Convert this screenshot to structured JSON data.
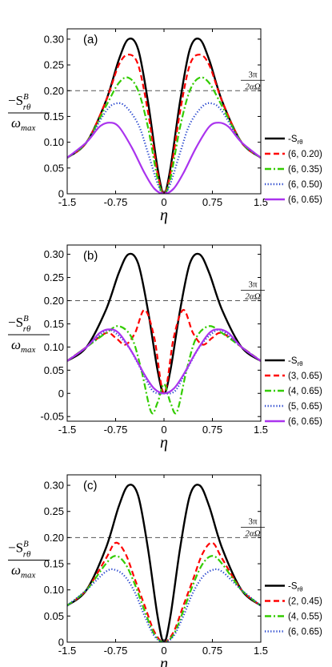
{
  "figure": {
    "ylabel_top": "−S",
    "ylabel_top_sup": "B",
    "ylabel_top_sub": "rθ",
    "ylabel_bottom": "ω",
    "ylabel_bottom_sub": "max",
    "xlabel": "η",
    "ref_label_num": "3π",
    "ref_label_den": "2αΩ"
  },
  "chart_data": [
    {
      "type": "line",
      "panel_label": "(a)",
      "xlim": [
        -1.5,
        1.5
      ],
      "ylim": [
        0,
        0.32
      ],
      "xticks": [
        "-1.5",
        "-0.75",
        "0",
        "0.75",
        "1.5"
      ],
      "yticks": [
        "0",
        "0.05",
        "0.10",
        "0.15",
        "0.20",
        "0.25",
        "0.30"
      ],
      "reference_line": {
        "y": 0.2
      },
      "legend_position": "right",
      "series": [
        {
          "name": "-S",
          "name_sub": "rθ",
          "color": "#000000",
          "style": "solid",
          "x": [
            -1.5,
            -1.2,
            -0.9,
            -0.7,
            -0.55,
            -0.4,
            -0.25,
            -0.1,
            0,
            0.1,
            0.25,
            0.4,
            0.55,
            0.7,
            0.9,
            1.2,
            1.5
          ],
          "y": [
            0.07,
            0.1,
            0.18,
            0.26,
            0.3,
            0.28,
            0.18,
            0.05,
            0,
            0.05,
            0.18,
            0.28,
            0.3,
            0.26,
            0.18,
            0.1,
            0.07
          ]
        },
        {
          "name": "(6, 0.20)",
          "color": "#ff0000",
          "style": "dashed",
          "x": [
            -1.5,
            -1.2,
            -0.9,
            -0.7,
            -0.55,
            -0.4,
            -0.25,
            -0.1,
            0,
            0.1,
            0.25,
            0.4,
            0.55,
            0.7,
            0.9,
            1.2,
            1.5
          ],
          "y": [
            0.07,
            0.1,
            0.18,
            0.25,
            0.27,
            0.25,
            0.16,
            0.04,
            0,
            0.04,
            0.16,
            0.25,
            0.27,
            0.25,
            0.18,
            0.1,
            0.07
          ]
        },
        {
          "name": "(6, 0.35)",
          "color": "#33cc00",
          "style": "dashdot",
          "x": [
            -1.5,
            -1.2,
            -0.9,
            -0.7,
            -0.55,
            -0.4,
            -0.25,
            -0.1,
            0,
            0.1,
            0.25,
            0.4,
            0.55,
            0.7,
            0.9,
            1.2,
            1.5
          ],
          "y": [
            0.07,
            0.1,
            0.17,
            0.215,
            0.225,
            0.2,
            0.13,
            0.03,
            0,
            0.03,
            0.13,
            0.2,
            0.225,
            0.215,
            0.17,
            0.1,
            0.07
          ]
        },
        {
          "name": "(6, 0.50)",
          "color": "#1f3fcc",
          "style": "dotted",
          "x": [
            -1.5,
            -1.2,
            -0.9,
            -0.75,
            -0.6,
            -0.4,
            -0.25,
            -0.1,
            0,
            0.1,
            0.25,
            0.4,
            0.6,
            0.75,
            0.9,
            1.2,
            1.5
          ],
          "y": [
            0.07,
            0.1,
            0.16,
            0.175,
            0.17,
            0.135,
            0.08,
            0.02,
            0,
            0.02,
            0.08,
            0.135,
            0.17,
            0.175,
            0.16,
            0.1,
            0.07
          ]
        },
        {
          "name": "(6, 0.65)",
          "color": "#aa33ee",
          "style": "solid",
          "x": [
            -1.5,
            -1.2,
            -1.0,
            -0.85,
            -0.7,
            -0.5,
            -0.3,
            -0.15,
            0,
            0.15,
            0.3,
            0.5,
            0.7,
            0.85,
            1.0,
            1.2,
            1.5
          ],
          "y": [
            0.07,
            0.1,
            0.13,
            0.138,
            0.13,
            0.09,
            0.04,
            0.01,
            0,
            0.01,
            0.04,
            0.09,
            0.13,
            0.138,
            0.13,
            0.1,
            0.07
          ]
        }
      ]
    },
    {
      "type": "line",
      "panel_label": "(b)",
      "xlim": [
        -1.5,
        1.5
      ],
      "ylim": [
        -0.06,
        0.32
      ],
      "xticks": [
        "-1.5",
        "-0.75",
        "0",
        "0.75",
        "1.5"
      ],
      "yticks": [
        "-0.05",
        "0",
        "0.05",
        "0.10",
        "0.15",
        "0.20",
        "0.25",
        "0.30"
      ],
      "reference_line": {
        "y": 0.2
      },
      "legend_position": "right",
      "series": [
        {
          "name": "-S",
          "name_sub": "rθ",
          "color": "#000000",
          "style": "solid",
          "x": [
            -1.5,
            -1.2,
            -0.9,
            -0.7,
            -0.55,
            -0.4,
            -0.25,
            -0.1,
            0,
            0.1,
            0.25,
            0.4,
            0.55,
            0.7,
            0.9,
            1.2,
            1.5
          ],
          "y": [
            0.07,
            0.1,
            0.18,
            0.26,
            0.3,
            0.28,
            0.18,
            0.05,
            0,
            0.05,
            0.18,
            0.28,
            0.3,
            0.26,
            0.18,
            0.1,
            0.07
          ]
        },
        {
          "name": "(3, 0.65)",
          "color": "#ff0000",
          "style": "dashed",
          "x": [
            -1.5,
            -1.2,
            -0.9,
            -0.75,
            -0.6,
            -0.45,
            -0.3,
            -0.15,
            0,
            0.15,
            0.3,
            0.45,
            0.6,
            0.75,
            0.9,
            1.2,
            1.5
          ],
          "y": [
            0.07,
            0.1,
            0.13,
            0.12,
            0.105,
            0.13,
            0.18,
            0.12,
            0,
            0.12,
            0.18,
            0.13,
            0.105,
            0.12,
            0.13,
            0.1,
            0.07
          ]
        },
        {
          "name": "(4, 0.65)",
          "color": "#33cc00",
          "style": "dashdot",
          "x": [
            -1.5,
            -1.2,
            -0.9,
            -0.7,
            -0.5,
            -0.35,
            -0.2,
            -0.1,
            0,
            0.1,
            0.2,
            0.35,
            0.5,
            0.7,
            0.9,
            1.2,
            1.5
          ],
          "y": [
            0.07,
            0.1,
            0.13,
            0.145,
            0.12,
            0.05,
            -0.04,
            -0.02,
            0.02,
            -0.02,
            -0.04,
            0.05,
            0.12,
            0.145,
            0.13,
            0.1,
            0.07
          ]
        },
        {
          "name": "(5, 0.65)",
          "color": "#1f3fcc",
          "style": "dotted",
          "x": [
            -1.5,
            -1.2,
            -0.9,
            -0.75,
            -0.55,
            -0.35,
            -0.2,
            -0.1,
            0,
            0.1,
            0.2,
            0.35,
            0.55,
            0.75,
            0.9,
            1.2,
            1.5
          ],
          "y": [
            0.07,
            0.1,
            0.135,
            0.13,
            0.1,
            0.05,
            0.01,
            0.0,
            0.0,
            0.0,
            0.01,
            0.05,
            0.1,
            0.13,
            0.135,
            0.1,
            0.07
          ]
        },
        {
          "name": "(6, 0.65)",
          "color": "#aa33ee",
          "style": "solid",
          "x": [
            -1.5,
            -1.2,
            -1.0,
            -0.85,
            -0.7,
            -0.5,
            -0.3,
            -0.15,
            0,
            0.15,
            0.3,
            0.5,
            0.7,
            0.85,
            1.0,
            1.2,
            1.5
          ],
          "y": [
            0.07,
            0.1,
            0.13,
            0.138,
            0.13,
            0.09,
            0.04,
            0.01,
            0,
            0.01,
            0.04,
            0.09,
            0.13,
            0.138,
            0.13,
            0.1,
            0.07
          ]
        }
      ]
    },
    {
      "type": "line",
      "panel_label": "(c)",
      "xlim": [
        -1.5,
        1.5
      ],
      "ylim": [
        0,
        0.32
      ],
      "xticks": [
        "-1.5",
        "-0.75",
        "0",
        "0.75",
        "1.5"
      ],
      "yticks": [
        "0",
        "0.05",
        "0.10",
        "0.15",
        "0.20",
        "0.25",
        "0.30"
      ],
      "reference_line": {
        "y": 0.2
      },
      "legend_position": "right",
      "series": [
        {
          "name": "-S",
          "name_sub": "rθ",
          "color": "#000000",
          "style": "solid",
          "x": [
            -1.5,
            -1.2,
            -0.9,
            -0.7,
            -0.55,
            -0.4,
            -0.25,
            -0.1,
            0,
            0.1,
            0.25,
            0.4,
            0.55,
            0.7,
            0.9,
            1.2,
            1.5
          ],
          "y": [
            0.07,
            0.1,
            0.18,
            0.26,
            0.3,
            0.28,
            0.18,
            0.05,
            0,
            0.05,
            0.18,
            0.28,
            0.3,
            0.26,
            0.18,
            0.1,
            0.07
          ]
        },
        {
          "name": "(2, 0.45)",
          "color": "#ff0000",
          "style": "dashed",
          "x": [
            -1.5,
            -1.2,
            -0.9,
            -0.75,
            -0.6,
            -0.45,
            -0.3,
            -0.15,
            0,
            0.15,
            0.3,
            0.45,
            0.6,
            0.75,
            0.9,
            1.2,
            1.5
          ],
          "y": [
            0.07,
            0.1,
            0.16,
            0.19,
            0.17,
            0.12,
            0.07,
            0.02,
            0,
            0.02,
            0.07,
            0.12,
            0.17,
            0.19,
            0.16,
            0.1,
            0.07
          ]
        },
        {
          "name": "(4, 0.55)",
          "color": "#33cc00",
          "style": "dashdot",
          "x": [
            -1.5,
            -1.2,
            -0.9,
            -0.75,
            -0.6,
            -0.45,
            -0.3,
            -0.15,
            0,
            0.15,
            0.3,
            0.45,
            0.6,
            0.75,
            0.9,
            1.2,
            1.5
          ],
          "y": [
            0.07,
            0.1,
            0.15,
            0.165,
            0.15,
            0.11,
            0.06,
            0.015,
            0,
            0.015,
            0.06,
            0.11,
            0.15,
            0.165,
            0.15,
            0.1,
            0.07
          ]
        },
        {
          "name": "(6, 0.65)",
          "color": "#1f3fcc",
          "style": "dotted",
          "x": [
            -1.5,
            -1.2,
            -0.9,
            -0.75,
            -0.6,
            -0.45,
            -0.3,
            -0.15,
            0,
            0.15,
            0.3,
            0.45,
            0.6,
            0.75,
            0.9,
            1.2,
            1.5
          ],
          "y": [
            0.07,
            0.1,
            0.135,
            0.138,
            0.125,
            0.095,
            0.05,
            0.012,
            0,
            0.012,
            0.05,
            0.095,
            0.125,
            0.138,
            0.135,
            0.1,
            0.07
          ]
        }
      ]
    }
  ]
}
